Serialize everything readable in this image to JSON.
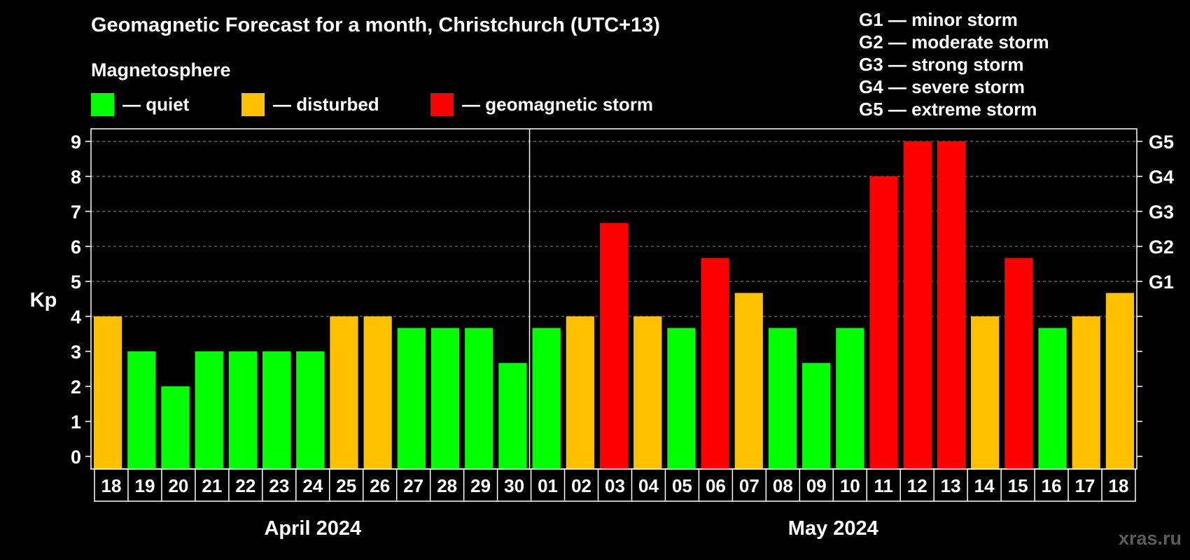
{
  "title": "Geomagnetic Forecast for a month, Christchurch (UTC+13)",
  "section_label": "Magnetosphere",
  "legend": [
    {
      "label": "— quiet",
      "color": "#00ff00"
    },
    {
      "label": "— disturbed",
      "color": "#ffc000"
    },
    {
      "label": "— geomagnetic storm",
      "color": "#ff0000"
    }
  ],
  "g_scale": [
    "G1 — minor storm",
    "G2 — moderate storm",
    "G3 — strong storm",
    "G4 — severe storm",
    "G5 — extreme storm"
  ],
  "watermark": "xras.ru",
  "chart_data": {
    "type": "bar",
    "ylabel": "Kp",
    "ylim": [
      0,
      9
    ],
    "y_ticks": [
      "0",
      "1",
      "2",
      "3",
      "4",
      "5",
      "6",
      "7",
      "8",
      "9"
    ],
    "right_axis_labels": [
      {
        "kp": 5,
        "label": "G1"
      },
      {
        "kp": 6,
        "label": "G2"
      },
      {
        "kp": 7,
        "label": "G3"
      },
      {
        "kp": 8,
        "label": "G4"
      },
      {
        "kp": 9,
        "label": "G5"
      }
    ],
    "grid": "dashed horizontal lines at Kp 4 to 9",
    "months": [
      {
        "label": "April 2024",
        "days": 13
      },
      {
        "label": "May 2024",
        "days": 18
      }
    ],
    "categories": [
      "18",
      "19",
      "20",
      "21",
      "22",
      "23",
      "24",
      "25",
      "26",
      "27",
      "28",
      "29",
      "30",
      "01",
      "02",
      "03",
      "04",
      "05",
      "06",
      "07",
      "08",
      "09",
      "10",
      "11",
      "12",
      "13",
      "14",
      "15",
      "16",
      "17",
      "18"
    ],
    "values": [
      4,
      3,
      2,
      3,
      3,
      3,
      3,
      4,
      4,
      3.67,
      3.67,
      3.67,
      2.67,
      3.67,
      4,
      6.67,
      4,
      3.67,
      5.67,
      4.67,
      3.67,
      2.67,
      3.67,
      8,
      9,
      9,
      4,
      5.67,
      3.67,
      4,
      4.67
    ],
    "levels": [
      "disturbed",
      "quiet",
      "quiet",
      "quiet",
      "quiet",
      "quiet",
      "quiet",
      "disturbed",
      "disturbed",
      "quiet",
      "quiet",
      "quiet",
      "quiet",
      "quiet",
      "disturbed",
      "storm",
      "disturbed",
      "quiet",
      "storm",
      "disturbed",
      "quiet",
      "quiet",
      "quiet",
      "storm",
      "storm",
      "storm",
      "disturbed",
      "storm",
      "quiet",
      "disturbed",
      "disturbed"
    ],
    "colors": {
      "quiet": "#00ff00",
      "disturbed": "#ffc000",
      "storm": "#ff0000"
    }
  }
}
